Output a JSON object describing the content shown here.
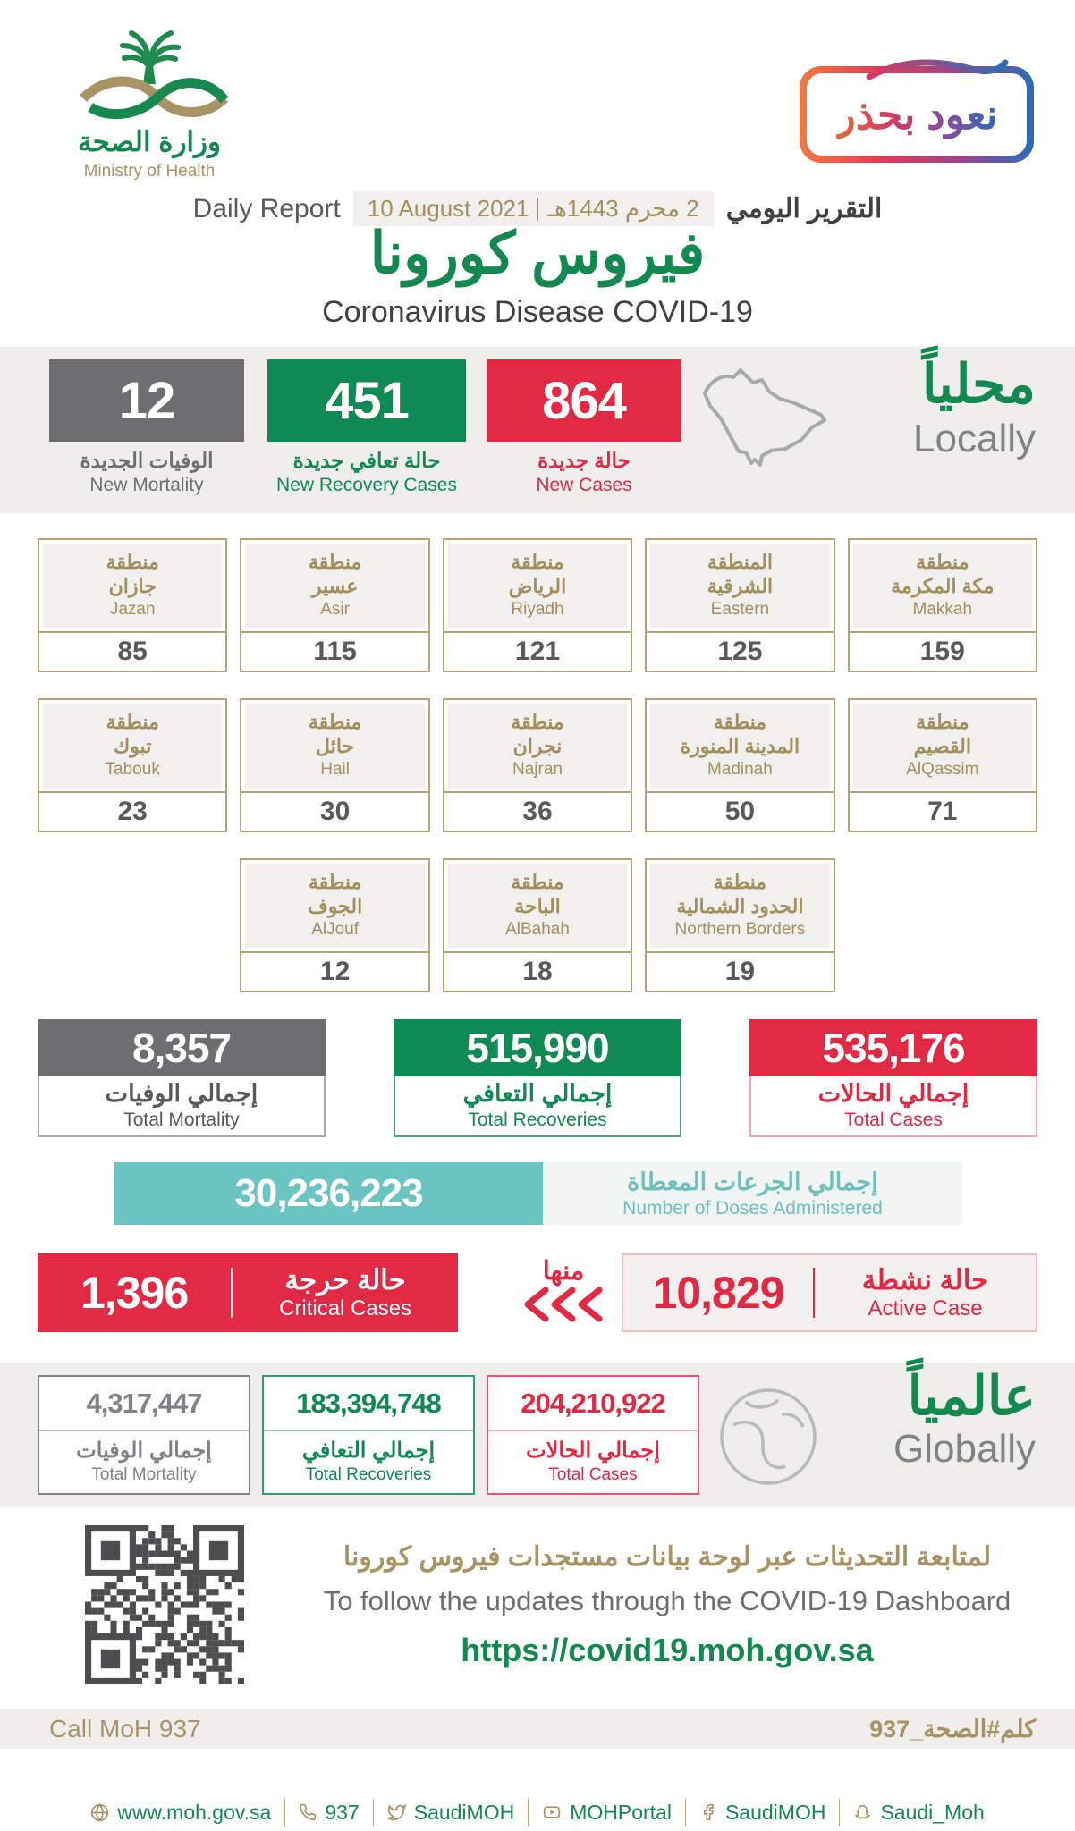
{
  "colors": {
    "green": "#12894f",
    "red": "#e12944",
    "gray": "#6d6e70",
    "tan": "#a99263",
    "teal": "#6ac5c2"
  },
  "header": {
    "logo": {
      "arabic": "وزارة الصحة",
      "english": "Ministry of Health"
    },
    "badge": {
      "arabic": "نعود بحذر"
    },
    "report": {
      "label_en": "Daily Report",
      "date_en": "10 August 2021",
      "date_ar": "2 محرم 1443هـ",
      "label_ar": "التقرير اليومي"
    },
    "title_ar": "فيروس كورونا",
    "title_en": "Coronavirus Disease COVID-19"
  },
  "locally": {
    "heading_ar": "محلياً",
    "heading_en": "Locally",
    "stats": [
      {
        "value": "12",
        "label_ar": "الوفيات الجديدة",
        "label_en": "New Mortality",
        "color": "#6d6e70"
      },
      {
        "value": "451",
        "label_ar": "حالة تعافي جديدة",
        "label_en": "New Recovery Cases",
        "color": "#0f8a54"
      },
      {
        "value": "864",
        "label_ar": "حالة جديدة",
        "label_en": "New Cases",
        "color": "#e12944"
      }
    ]
  },
  "regions": [
    {
      "prefix_ar": "منطقة",
      "name_ar": "جازان",
      "name_en": "Jazan",
      "value": "85"
    },
    {
      "prefix_ar": "منطقة",
      "name_ar": "عسير",
      "name_en": "Asir",
      "value": "115"
    },
    {
      "prefix_ar": "منطقة",
      "name_ar": "الرياض",
      "name_en": "Riyadh",
      "value": "121"
    },
    {
      "prefix_ar": "المنطقة",
      "name_ar": "الشرقية",
      "name_en": "Eastern",
      "value": "125"
    },
    {
      "prefix_ar": "منطقة",
      "name_ar": "مكة المكرمة",
      "name_en": "Makkah",
      "value": "159"
    },
    {
      "prefix_ar": "منطقة",
      "name_ar": "تبوك",
      "name_en": "Tabouk",
      "value": "23"
    },
    {
      "prefix_ar": "منطقة",
      "name_ar": "حائل",
      "name_en": "Hail",
      "value": "30"
    },
    {
      "prefix_ar": "منطقة",
      "name_ar": "نجران",
      "name_en": "Najran",
      "value": "36"
    },
    {
      "prefix_ar": "منطقة",
      "name_ar": "المدينة المنورة",
      "name_en": "Madinah",
      "value": "50"
    },
    {
      "prefix_ar": "منطقة",
      "name_ar": "القصيم",
      "name_en": "AlQassim",
      "value": "71"
    },
    {
      "prefix_ar": "منطقة",
      "name_ar": "الجوف",
      "name_en": "AlJouf",
      "value": "12"
    },
    {
      "prefix_ar": "منطقة",
      "name_ar": "الباحة",
      "name_en": "AlBahah",
      "value": "18"
    },
    {
      "prefix_ar": "منطقة",
      "name_ar": "الحدود الشمالية",
      "name_en": "Northern Borders",
      "value": "19"
    }
  ],
  "totals": [
    {
      "value": "8,357",
      "label_ar": "إجمالي الوفيات",
      "label_en": "Total Mortality",
      "color": "#6d6e70"
    },
    {
      "value": "515,990",
      "label_ar": "إجمالي التعافي",
      "label_en": "Total Recoveries",
      "color": "#0f8a54"
    },
    {
      "value": "535,176",
      "label_ar": "إجمالي الحالات",
      "label_en": "Total Cases",
      "color": "#e12944"
    }
  ],
  "doses": {
    "value": "30,236,223",
    "label_ar": "إجمالي الجرعات المعطاة",
    "label_en": "Number of Doses Administered"
  },
  "critical": {
    "value": "1,396",
    "label_ar": "حالة حرجة",
    "label_en": "Critical Cases"
  },
  "of_which_ar": "منها",
  "active": {
    "value": "10,829",
    "label_ar": "حالة نشطة",
    "label_en": "Active Case"
  },
  "globally": {
    "heading_ar": "عالمياً",
    "heading_en": "Globally",
    "stats": [
      {
        "value": "4,317,447",
        "label_ar": "إجمالي الوفيات",
        "label_en": "Total Mortality",
        "color": "#808285"
      },
      {
        "value": "183,394,748",
        "label_ar": "إجمالي التعافي",
        "label_en": "Total Recoveries",
        "color": "#0f8a54"
      },
      {
        "value": "204,210,922",
        "label_ar": "إجمالي الحالات",
        "label_en": "Total Cases",
        "color": "#e12944"
      }
    ]
  },
  "dashboard": {
    "line_ar": "لمتابعة التحديثات عبر لوحة بيانات مستجدات فيروس كورونا",
    "line_en": "To follow the updates through the COVID-19 Dashboard",
    "url": "https://covid19.moh.gov.sa"
  },
  "callband": {
    "en": "Call MoH 937",
    "ar": "كلم#الصحة_937"
  },
  "footer": {
    "items": [
      {
        "icon": "globe-icon",
        "text": "www.moh.gov.sa"
      },
      {
        "icon": "phone-icon",
        "text": "937"
      },
      {
        "icon": "twitter-icon",
        "text": "SaudiMOH"
      },
      {
        "icon": "youtube-icon",
        "text": "MOHPortal"
      },
      {
        "icon": "facebook-icon",
        "text": "SaudiMOH"
      },
      {
        "icon": "snapchat-icon",
        "text": "Saudi_Moh"
      }
    ]
  }
}
